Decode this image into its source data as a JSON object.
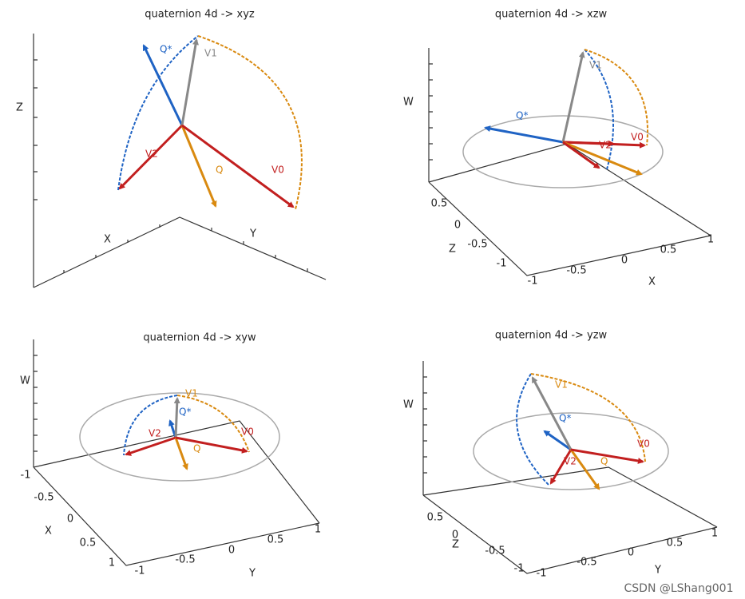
{
  "panels": [
    {
      "title": "quaternion 4d -> xyz",
      "axis_labels": [
        "Z",
        "X",
        "Y"
      ],
      "ticks": [],
      "vectors": [
        "Q*",
        "V1",
        "V2",
        "Q",
        "V0"
      ]
    },
    {
      "title": "quaternion 4d -> xzw",
      "axis_labels": [
        "W",
        "Z",
        "X"
      ],
      "ticks": [
        [
          "0.5",
          "0",
          "-0.5",
          "-1"
        ],
        [
          "-1",
          "-0.5",
          "0",
          "0.5",
          "1"
        ]
      ],
      "vectors": [
        "Q*",
        "V1",
        "V2",
        "V0"
      ]
    },
    {
      "title": "quaternion 4d -> xyw",
      "axis_labels": [
        "W",
        "X",
        "Y"
      ],
      "ticks": [
        [
          "-1",
          "-0.5",
          "0",
          "0.5",
          "1"
        ],
        [
          "-1",
          "-0.5",
          "0",
          "0.5",
          "1"
        ]
      ],
      "vectors": [
        "Q*",
        "V1",
        "V2",
        "Q",
        "V0"
      ]
    },
    {
      "title": "quaternion 4d -> yzw",
      "axis_labels": [
        "W",
        "Z",
        "Y"
      ],
      "ticks": [
        [
          "0.5",
          "0",
          "-0.5",
          "-1"
        ],
        [
          "-1",
          "-0.5",
          "0",
          "0.5",
          "1"
        ]
      ],
      "vectors": [
        "Q*",
        "V1",
        "V2",
        "Q",
        "V0"
      ]
    }
  ],
  "watermark": "CSDN @LShang001"
}
